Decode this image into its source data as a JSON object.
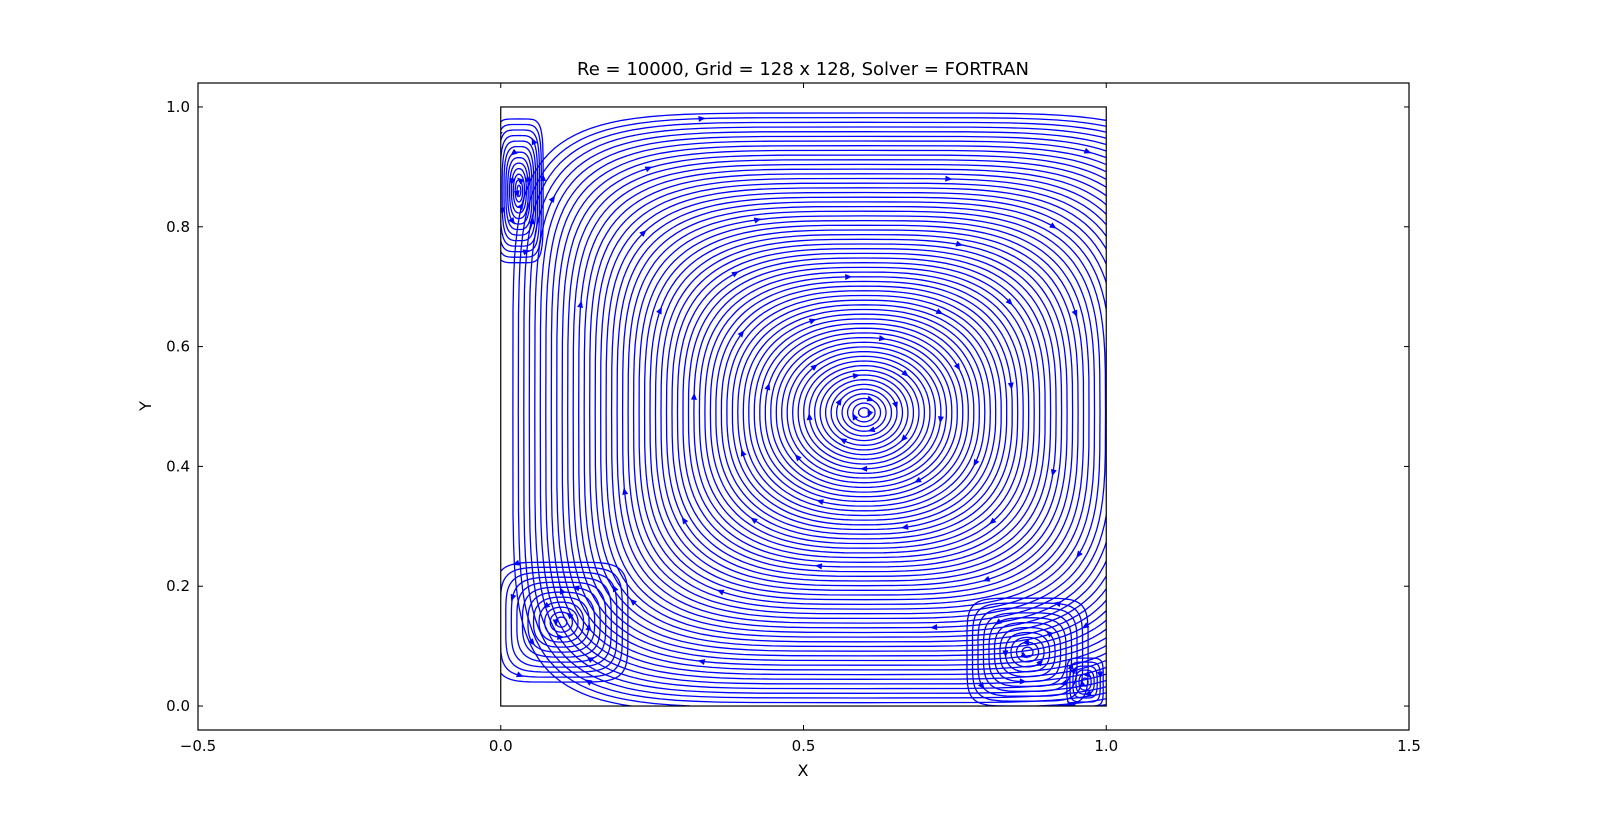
{
  "chart_data": {
    "type": "streamplot",
    "title": "Re = 10000, Grid = 128 x 128, Solver = FORTRAN",
    "xlabel": "X",
    "ylabel": "Y",
    "xlim": [
      -0.5,
      1.5
    ],
    "ylim": [
      -0.04,
      1.04
    ],
    "x_ticks": [
      -0.5,
      0.0,
      0.5,
      1.0,
      1.5
    ],
    "x_tick_labels": [
      "−0.5",
      "0.0",
      "0.5",
      "1.0",
      "1.5"
    ],
    "y_ticks": [
      0.0,
      0.2,
      0.4,
      0.6,
      0.8,
      1.0
    ],
    "y_tick_labels": [
      "0.0",
      "0.2",
      "0.4",
      "0.6",
      "0.8",
      "1.0"
    ],
    "domain_box": {
      "x": [
        0.0,
        1.0
      ],
      "y": [
        0.0,
        1.0
      ]
    },
    "line_color": "#0000ff",
    "grid": false,
    "vortices": [
      {
        "name": "primary",
        "center": [
          0.6,
          0.49
        ],
        "rx": 0.58,
        "ry": 0.5,
        "rotation": "clockwise"
      },
      {
        "name": "bottom-left",
        "center": [
          0.1,
          0.14
        ],
        "rx": 0.11,
        "ry": 0.1,
        "rotation": "counterclockwise"
      },
      {
        "name": "bottom-right",
        "center": [
          0.87,
          0.09
        ],
        "rx": 0.1,
        "ry": 0.09,
        "rotation": "counterclockwise"
      },
      {
        "name": "corner-right",
        "center": [
          0.965,
          0.04
        ],
        "rx": 0.03,
        "ry": 0.04,
        "rotation": "clockwise"
      },
      {
        "name": "top-left",
        "center": [
          0.03,
          0.86
        ],
        "rx": 0.04,
        "ry": 0.12,
        "rotation": "counterclockwise"
      }
    ]
  }
}
